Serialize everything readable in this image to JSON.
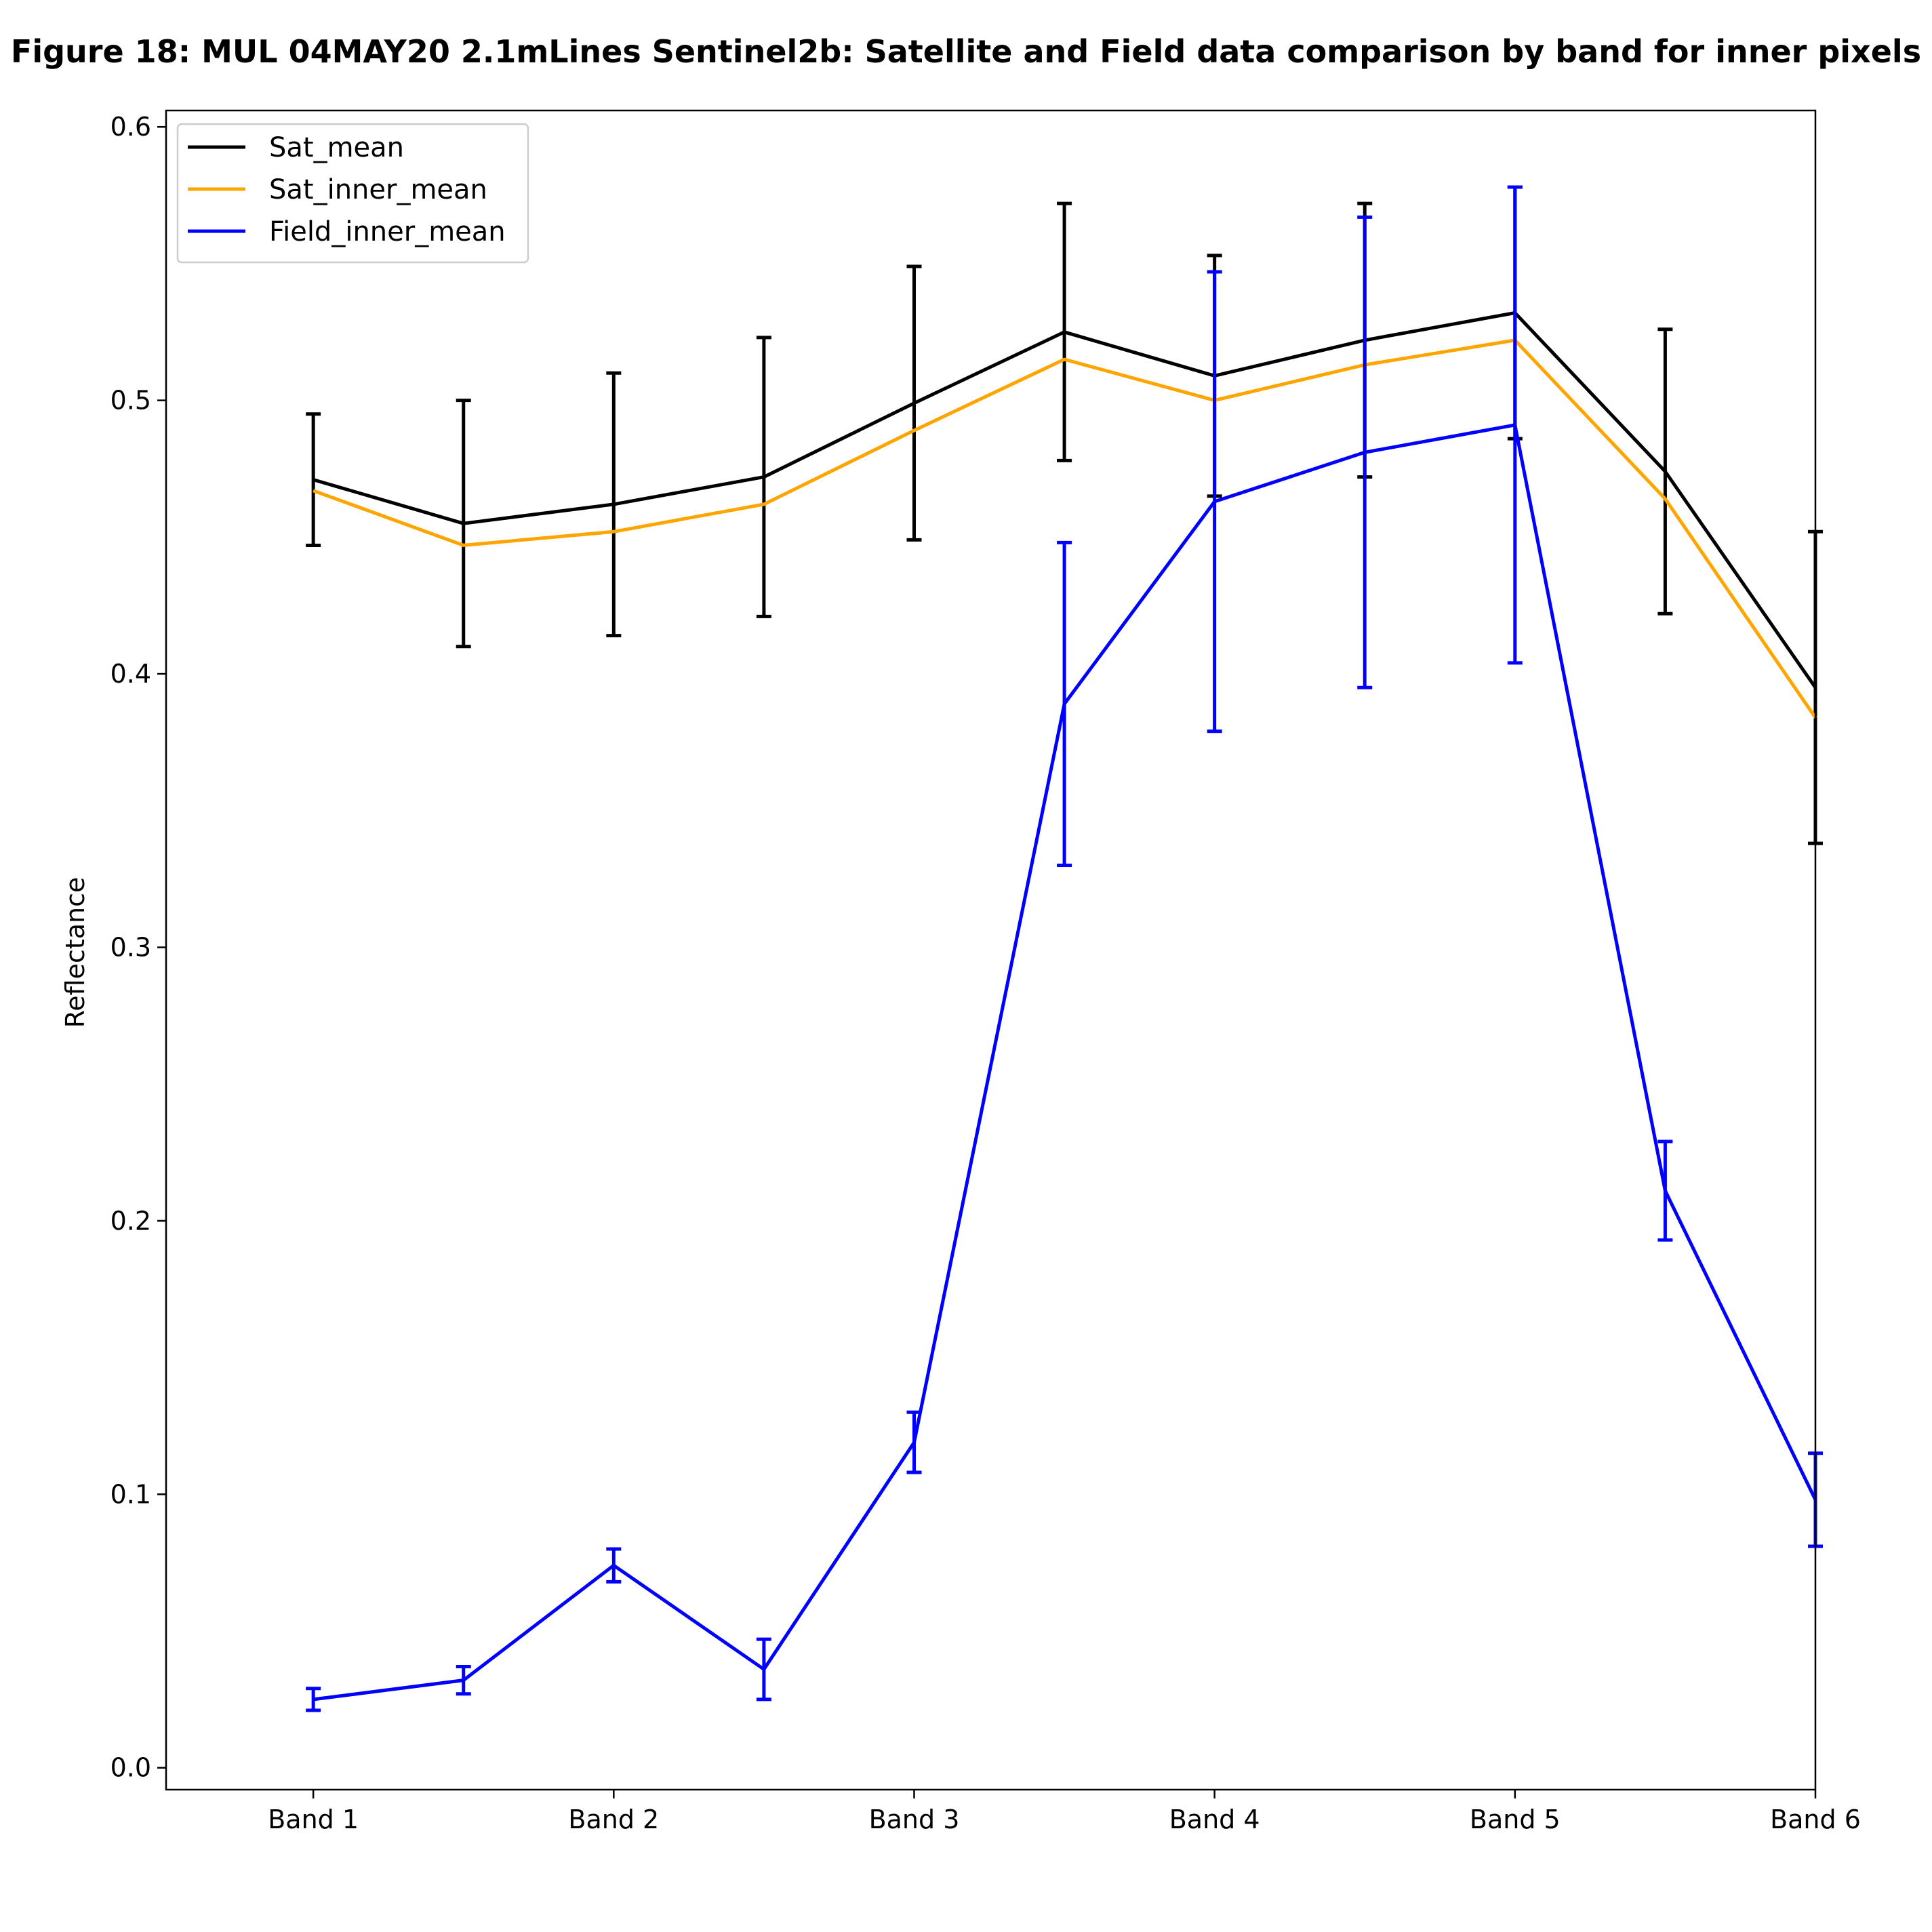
{
  "chart_data": {
    "type": "line",
    "title": "Figure 18: MUL 04MAY20 2.1mLines Sentinel2b: Satellite and Field data comparison by band for inner pixels",
    "xlabel": "",
    "ylabel": "Reflectance",
    "ylim": [
      -0.008,
      0.606
    ],
    "yticks": [
      "0.0",
      "0.1",
      "0.2",
      "0.3",
      "0.4",
      "0.5",
      "0.6"
    ],
    "xlim": [
      0.51,
      6.0
    ],
    "x": [
      1.0,
      1.5,
      2.0,
      2.5,
      3.0,
      3.5,
      4.0,
      4.5,
      5.0,
      5.5,
      6.0
    ],
    "xticks": [
      {
        "x": 1,
        "label": "Band 1"
      },
      {
        "x": 2,
        "label": "Band 2"
      },
      {
        "x": 3,
        "label": "Band 3"
      },
      {
        "x": 4,
        "label": "Band 4"
      },
      {
        "x": 5,
        "label": "Band 5"
      },
      {
        "x": 6,
        "label": "Band 6"
      }
    ],
    "grid": false,
    "legend_position": "upper-left",
    "series": [
      {
        "name": "Sat_mean",
        "color": "#000000",
        "values": [
          0.471,
          0.455,
          0.462,
          0.472,
          0.499,
          0.525,
          0.509,
          0.522,
          0.532,
          0.474,
          0.395
        ],
        "errors": [
          0.024,
          0.045,
          0.048,
          0.051,
          0.05,
          0.047,
          0.044,
          0.05,
          0.046,
          0.052,
          0.057
        ]
      },
      {
        "name": "Sat_inner_mean",
        "color": "#ffa500",
        "values": [
          0.467,
          0.447,
          0.452,
          0.462,
          0.489,
          0.515,
          0.5,
          0.513,
          0.522,
          0.464,
          0.384
        ]
      },
      {
        "name": "Field_inner_mean",
        "color": "#0000ff",
        "values": [
          0.025,
          0.032,
          0.074,
          0.036,
          0.119,
          0.389,
          0.463,
          0.481,
          0.491,
          0.211,
          0.098
        ],
        "errors": [
          0.004,
          0.005,
          0.006,
          0.011,
          0.011,
          0.059,
          0.084,
          0.086,
          0.087,
          0.018,
          0.017
        ]
      }
    ]
  }
}
